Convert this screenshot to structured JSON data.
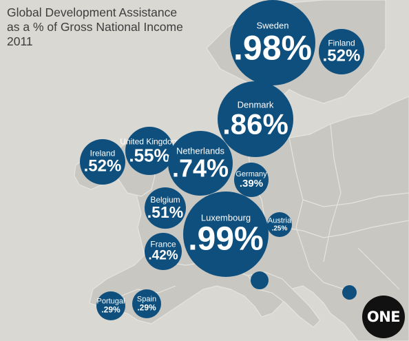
{
  "title": {
    "line1": "Global Development Assistance",
    "line2": "as a % of Gross National Income",
    "line3": "2011"
  },
  "countries": {
    "sweden": {
      "name": "Sweden",
      "value": ".98%"
    },
    "finland": {
      "name": "Finland",
      "value": ".52%"
    },
    "denmark": {
      "name": "Denmark",
      "value": ".86%"
    },
    "united_kingdom": {
      "name": "United Kingdom",
      "value": ".55%"
    },
    "ireland": {
      "name": "Ireland",
      "value": ".52%"
    },
    "netherlands": {
      "name": "Netherlands",
      "value": ".74%"
    },
    "germany": {
      "name": "Germany",
      "value": ".39%"
    },
    "belgium": {
      "name": "Belgium",
      "value": ".51%"
    },
    "luxembourg": {
      "name": "Luxembourg",
      "value": ".99%"
    },
    "austria": {
      "name": "Austria",
      "value": ".25%"
    },
    "france": {
      "name": "France",
      "value": ".42%"
    },
    "portugal": {
      "name": "Portugal",
      "value": ".29%"
    },
    "spain": {
      "name": "Spain",
      "value": ".29%"
    }
  },
  "logo": {
    "text": "ONE"
  },
  "colors": {
    "bubble": "#0e4f7d",
    "land": "#c9c7c2",
    "sea": "#dad8d3",
    "logo_bg": "#111111"
  }
}
